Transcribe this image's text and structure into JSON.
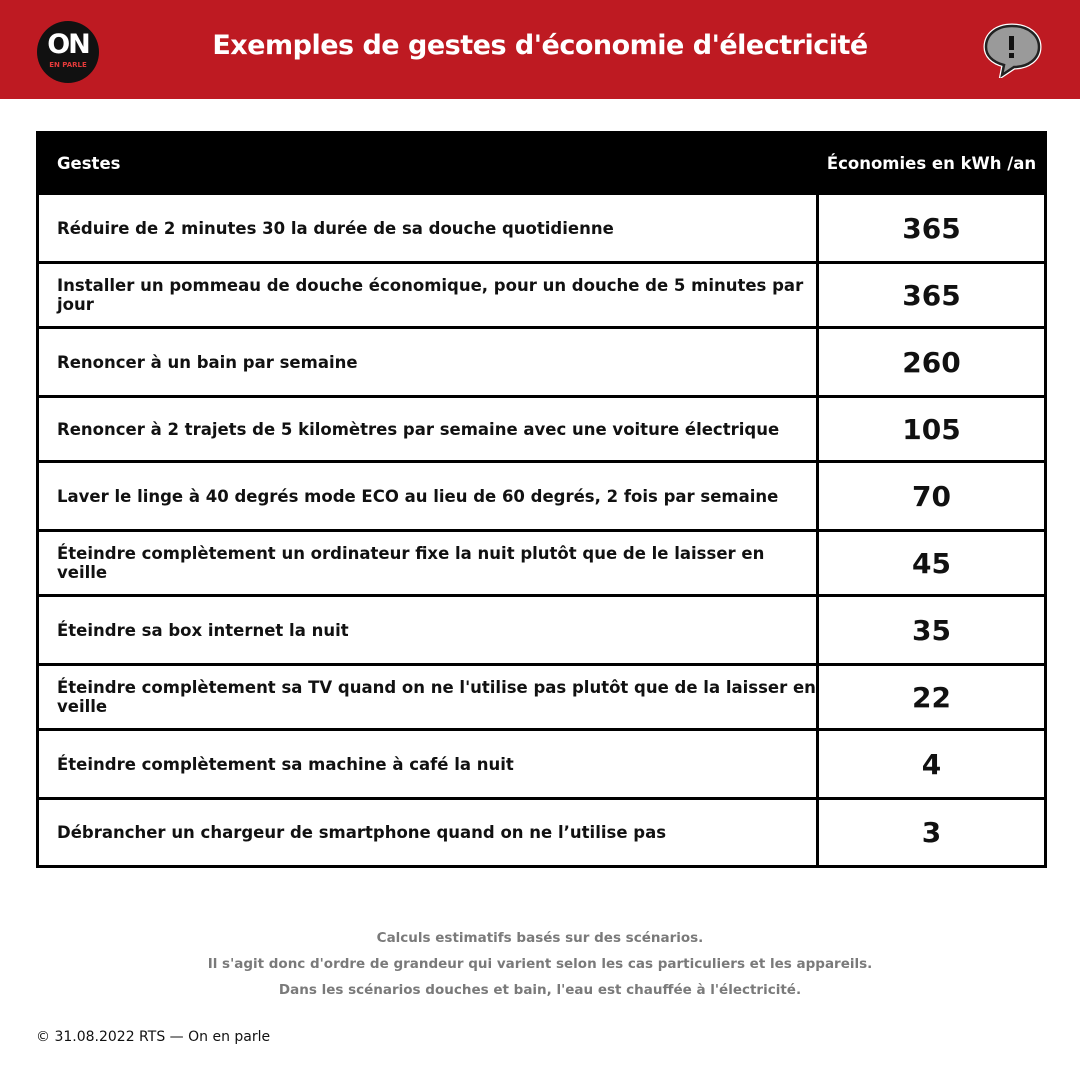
{
  "header": {
    "logo": "ON",
    "logo_sub": "EN PARLE",
    "title": "Exemples de gestes d'économie d'électricité"
  },
  "table": {
    "columns": [
      "Gestes",
      "Économies en kWh /an"
    ],
    "rows": [
      [
        "Réduire de 2 minutes 30 la durée de sa douche quotidienne",
        365
      ],
      [
        "Installer un pommeau de douche économique, pour un douche de 5 minutes par jour",
        365
      ],
      [
        "Renoncer à un bain par semaine",
        260
      ],
      [
        "Renoncer à 2 trajets de 5 kilomètres par semaine avec une voiture électrique",
        105
      ],
      [
        "Laver le linge à 40 degrés mode ECO au lieu de 60 degrés, 2 fois par semaine",
        70
      ],
      [
        "Éteindre complètement un ordinateur fixe la nuit plutôt que de le laisser en veille",
        45
      ],
      [
        "Éteindre sa box internet la nuit",
        35
      ],
      [
        "Éteindre complètement sa TV quand on ne l'utilise pas plutôt que de la laisser en veille",
        22
      ],
      [
        "Éteindre complètement sa machine à café la nuit",
        4
      ],
      [
        "Débrancher un chargeur de smartphone quand on ne l’utilise pas",
        3
      ]
    ]
  },
  "notes": [
    "Calculs estimatifs basés sur des scénarios.",
    "Il s'agit donc d'ordre de grandeur qui varient selon les cas particuliers et les appareils.",
    "Dans les scénarios douches et bain, l'eau est chauffée à l'électricité."
  ],
  "footer": "© 31.08.2022 RTS — On en parle"
}
